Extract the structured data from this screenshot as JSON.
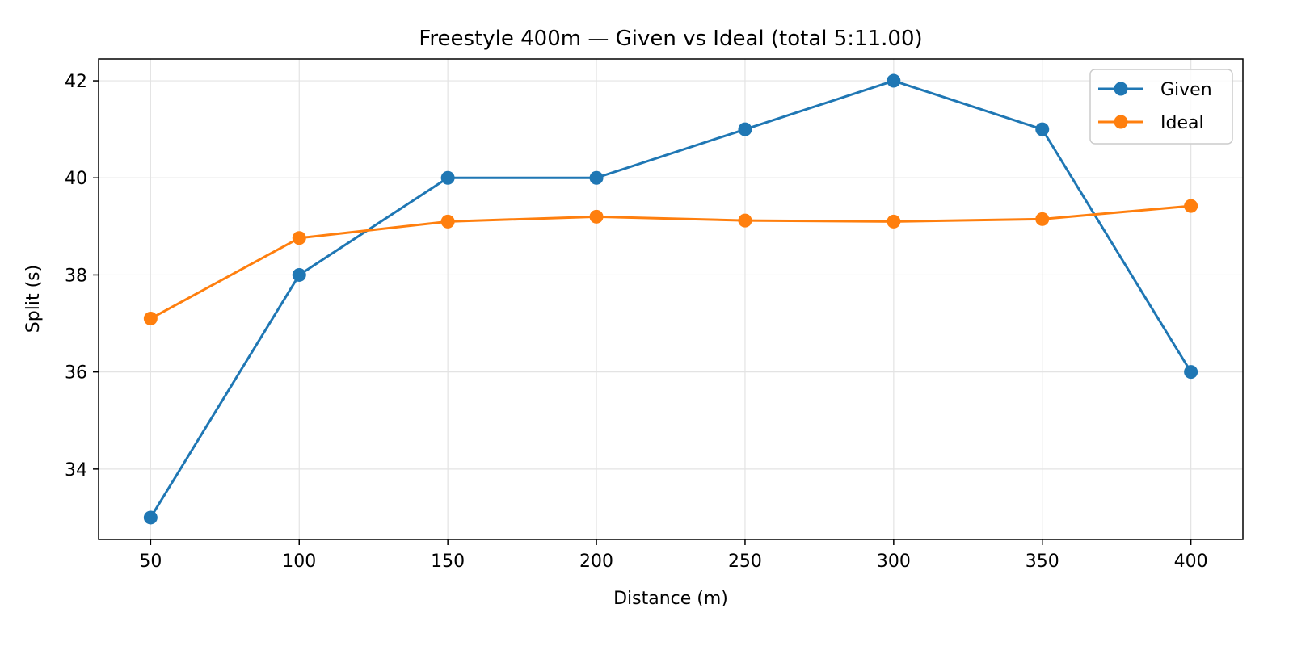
{
  "chart_data": {
    "type": "line",
    "title": "Freestyle 400m — Given vs Ideal (total 5:11.00)",
    "xlabel": "Distance (m)",
    "ylabel": "Split (s)",
    "x": [
      50,
      100,
      150,
      200,
      250,
      300,
      350,
      400
    ],
    "xticks": [
      "50",
      "100",
      "150",
      "200",
      "250",
      "300",
      "350",
      "400"
    ],
    "yticks": [
      "34",
      "36",
      "38",
      "40",
      "42"
    ],
    "xlim": [
      32.5,
      417.5
    ],
    "ylim": [
      32.55,
      42.45
    ],
    "grid": true,
    "legend_position": "top-right",
    "series": [
      {
        "name": "Given",
        "color": "#1f77b4",
        "values": [
          33,
          38,
          40,
          40,
          41,
          42,
          41,
          36
        ]
      },
      {
        "name": "Ideal",
        "color": "#ff7f0e",
        "values": [
          37.1,
          38.76,
          39.1,
          39.2,
          39.12,
          39.1,
          39.15,
          39.42
        ]
      }
    ]
  }
}
